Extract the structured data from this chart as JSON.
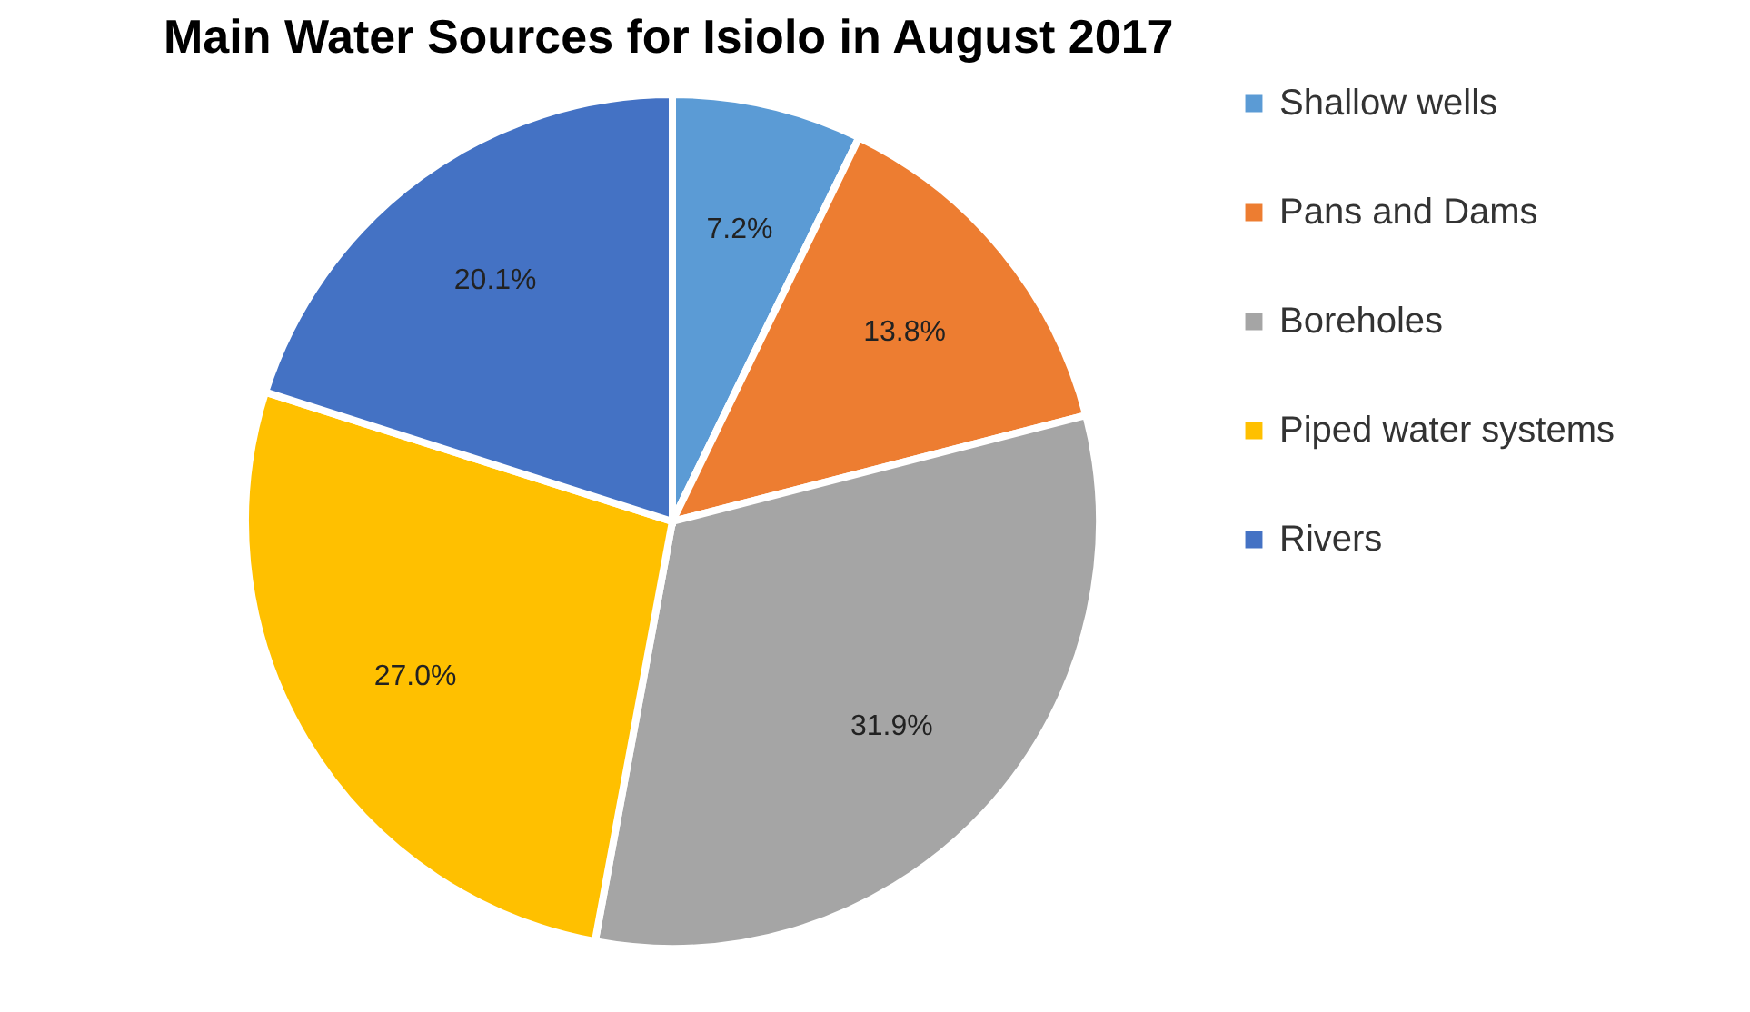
{
  "chart_data": {
    "type": "pie",
    "title": "Main Water Sources for Isiolo in August 2017",
    "categories": [
      "Shallow wells",
      "Pans and Dams",
      "Boreholes",
      "Piped water systems",
      "Rivers"
    ],
    "values": [
      7.2,
      13.8,
      31.9,
      27.0,
      20.1
    ],
    "colors": [
      "#5b9bd5",
      "#ed7d31",
      "#a5a5a5",
      "#ffc000",
      "#4472c4"
    ],
    "value_labels": [
      "7.2%",
      "13.8%",
      "31.9%",
      "27.0%",
      "20.1%"
    ],
    "legend": "right"
  }
}
